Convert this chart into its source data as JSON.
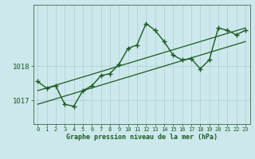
{
  "title": "Graphe pression niveau de la mer (hPa)",
  "background_color": "#cce8ec",
  "grid_color": "#aacdd4",
  "line_color": "#1a5c1a",
  "x_ticks": [
    0,
    1,
    2,
    3,
    4,
    5,
    6,
    7,
    8,
    9,
    10,
    11,
    12,
    13,
    14,
    15,
    16,
    17,
    18,
    19,
    20,
    21,
    22,
    23
  ],
  "y_ticks": [
    1017,
    1018
  ],
  "ylim": [
    1016.3,
    1019.8
  ],
  "xlim": [
    -0.5,
    23.5
  ],
  "main_data": [
    1017.55,
    1017.35,
    1017.42,
    1016.88,
    1016.82,
    1017.28,
    1017.42,
    1017.72,
    1017.78,
    1018.05,
    1018.52,
    1018.62,
    1019.25,
    1019.05,
    1018.72,
    1018.32,
    1018.18,
    1018.22,
    1017.92,
    1018.18,
    1019.12,
    1019.05,
    1018.92,
    1019.05
  ],
  "trend1_x": [
    0,
    23
  ],
  "trend1_y": [
    1016.88,
    1018.72
  ],
  "trend2_x": [
    0,
    23
  ],
  "trend2_y": [
    1017.28,
    1019.12
  ]
}
